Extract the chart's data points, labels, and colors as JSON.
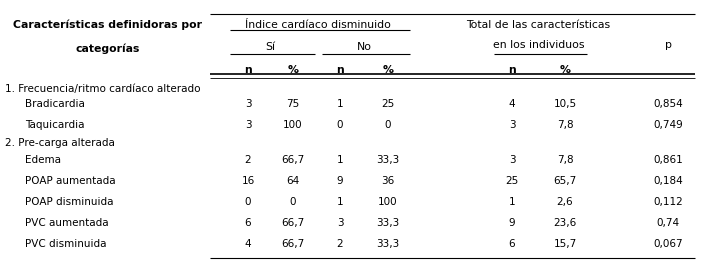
{
  "fig_width": 7.19,
  "fig_height": 2.69,
  "dpi": 100,
  "header1": "Índice cardíaco disminuido",
  "header2_si": "Sí",
  "header2_no": "No",
  "header3_line1": "Total de las características",
  "header3_line2": "en los individuos",
  "header_p": "p",
  "col_header_n": "n",
  "col_header_pct": "%",
  "col1_label_line1": "Características definidoras por",
  "col1_label_line2": "categorías",
  "section1": "1. Frecuencia/ritmo cardíaco alterado",
  "section2": "2. Pre-carga alterada",
  "rows": [
    {
      "label": "Bradicardia",
      "si_n": "3",
      "si_pct": "75",
      "no_n": "1",
      "no_pct": "25",
      "tot_n": "4",
      "tot_pct": "10,5",
      "p": "0,854",
      "is_section": false
    },
    {
      "label": "Taquicardia",
      "si_n": "3",
      "si_pct": "100",
      "no_n": "0",
      "no_pct": "0",
      "tot_n": "3",
      "tot_pct": "7,8",
      "p": "0,749",
      "is_section": false
    },
    {
      "label": "2. Pre-carga alterada",
      "si_n": "",
      "si_pct": "",
      "no_n": "",
      "no_pct": "",
      "tot_n": "",
      "tot_pct": "",
      "p": "",
      "is_section": true
    },
    {
      "label": "Edema",
      "si_n": "2",
      "si_pct": "66,7",
      "no_n": "1",
      "no_pct": "33,3",
      "tot_n": "3",
      "tot_pct": "7,8",
      "p": "0,861",
      "is_section": false
    },
    {
      "label": "POAP aumentada",
      "si_n": "16",
      "si_pct": "64",
      "no_n": "9",
      "no_pct": "36",
      "tot_n": "25",
      "tot_pct": "65,7",
      "p": "0,184",
      "is_section": false
    },
    {
      "label": "POAP disminuida",
      "si_n": "0",
      "si_pct": "0",
      "no_n": "1",
      "no_pct": "100",
      "tot_n": "1",
      "tot_pct": "2,6",
      "p": "0,112",
      "is_section": false
    },
    {
      "label": "PVC aumentada",
      "si_n": "6",
      "si_pct": "66,7",
      "no_n": "3",
      "no_pct": "33,3",
      "tot_n": "9",
      "tot_pct": "23,6",
      "p": "0,74",
      "is_section": false
    },
    {
      "label": "PVC disminuida",
      "si_n": "4",
      "si_pct": "66,7",
      "no_n": "2",
      "no_pct": "33,3",
      "tot_n": "6",
      "tot_pct": "15,7",
      "p": "0,067",
      "is_section": false
    }
  ],
  "bg_color": "#ffffff",
  "text_color": "#000000",
  "line_color": "#000000",
  "font_size": 7.5,
  "header_font_size": 7.8,
  "bold_headers": true
}
